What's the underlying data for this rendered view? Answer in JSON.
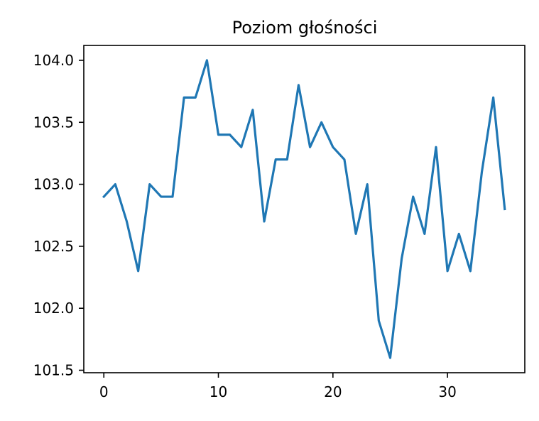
{
  "chart_data": {
    "type": "line",
    "title": "Poziom głośności",
    "xlabel": "",
    "ylabel": "",
    "x": [
      0,
      1,
      2,
      3,
      4,
      5,
      6,
      7,
      8,
      9,
      10,
      11,
      12,
      13,
      14,
      15,
      16,
      17,
      18,
      19,
      20,
      21,
      22,
      23,
      24,
      25,
      26,
      27,
      28,
      29,
      30,
      31,
      32,
      33,
      34,
      35
    ],
    "series": [
      {
        "values": [
          102.9,
          103.0,
          102.7,
          102.3,
          103.0,
          102.9,
          102.9,
          103.7,
          103.7,
          104.0,
          103.4,
          103.4,
          103.3,
          103.6,
          102.7,
          103.2,
          103.2,
          103.8,
          103.3,
          103.5,
          103.3,
          103.2,
          102.6,
          103.0,
          101.9,
          101.6,
          102.4,
          102.9,
          102.6,
          103.3,
          102.3,
          102.6,
          102.3,
          103.1,
          103.7,
          102.8
        ],
        "color": "#1f77b4"
      }
    ],
    "xlim": [
      -1.75,
      36.75
    ],
    "ylim": [
      101.48,
      104.12
    ],
    "xticks": [
      0,
      10,
      20,
      30
    ],
    "xtick_labels": [
      "0",
      "10",
      "20",
      "30"
    ],
    "yticks": [
      101.5,
      102.0,
      102.5,
      103.0,
      103.5,
      104.0
    ],
    "ytick_labels": [
      "101.5",
      "102.0",
      "102.5",
      "103.0",
      "103.5",
      "104.0"
    ],
    "grid": false,
    "legend": "none"
  }
}
